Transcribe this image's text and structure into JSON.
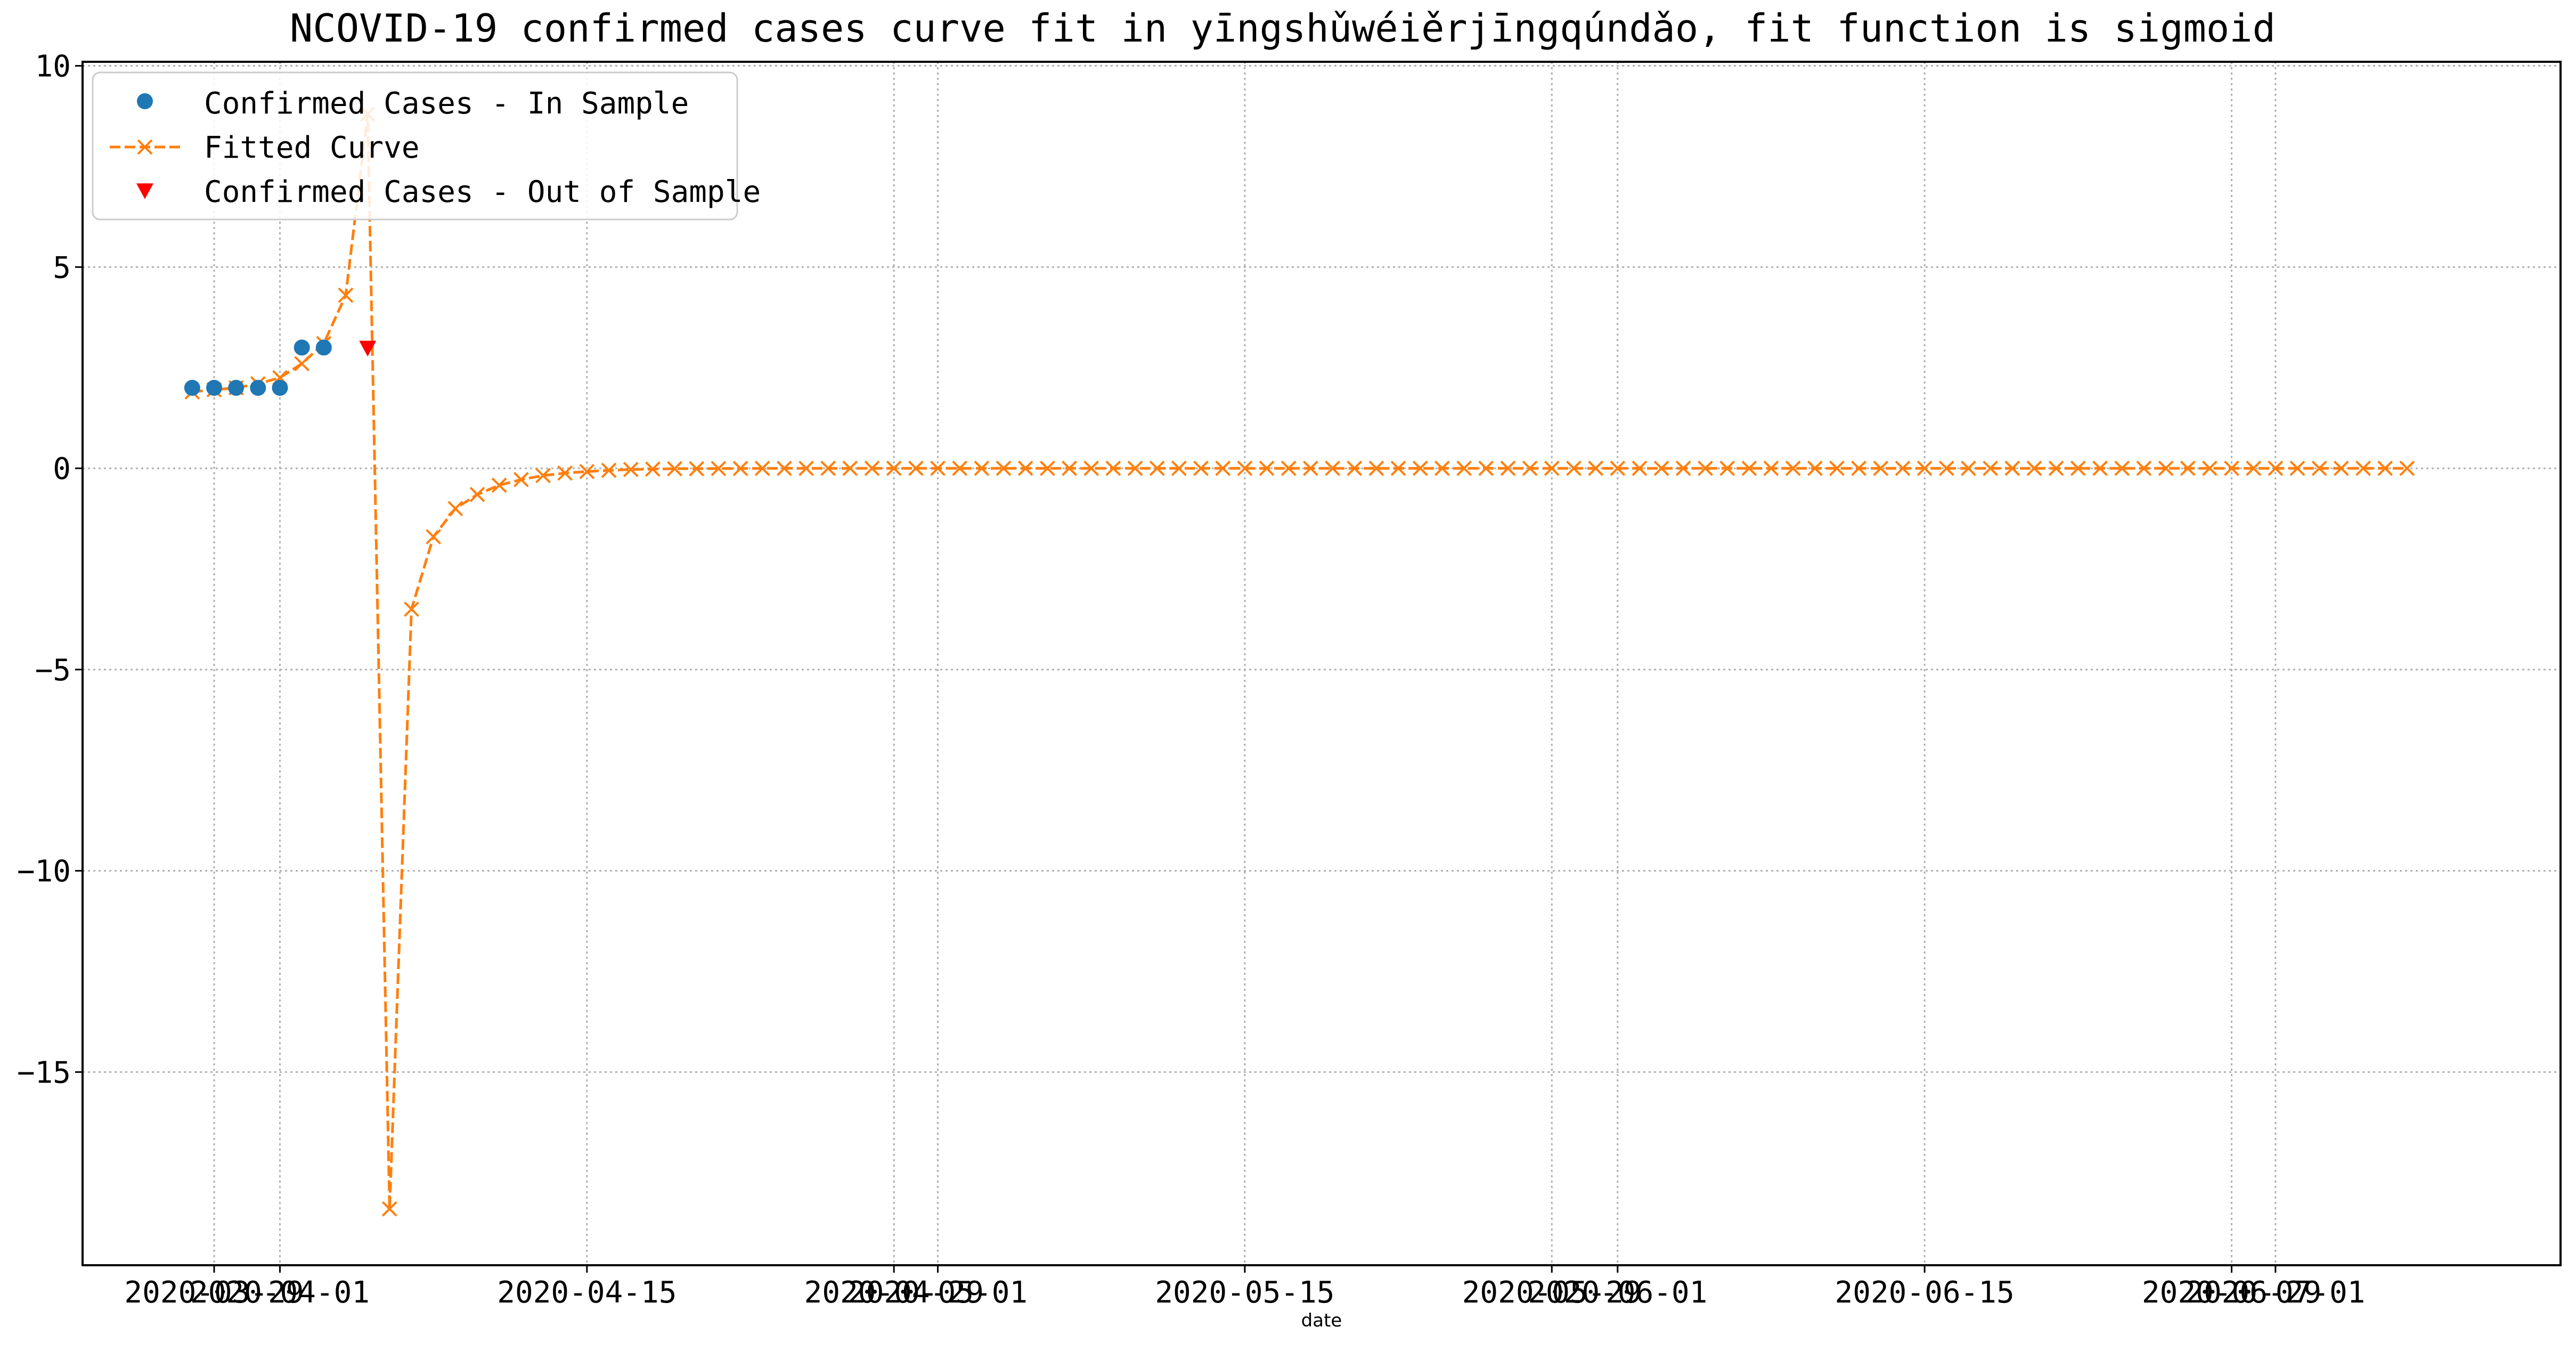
{
  "chart_data": {
    "type": "line",
    "title": "NCOVID-19 confirmed cases curve fit in yīngshǔwéiěrjīngqúndǎo, fit function is sigmoid",
    "xlabel": "date",
    "ylabel": "",
    "grid": true,
    "legend_position": "top-left",
    "x_type": "date",
    "xlim": [
      "2020-03-23",
      "2020-07-14"
    ],
    "ylim": [
      -19.8,
      10.1
    ],
    "x_ticks": [
      "2020-03-29",
      "2020-04-01",
      "2020-04-15",
      "2020-04-29",
      "2020-05-01",
      "2020-05-15",
      "2020-05-29",
      "2020-06-01",
      "2020-06-15",
      "2020-06-29",
      "2020-07-01"
    ],
    "y_ticks": [
      10,
      5,
      0,
      -5,
      -10,
      -15
    ],
    "colors": {
      "in_sample": "#1f77b4",
      "fitted": "#ff7f0e",
      "out_of_sample": "#ff0000",
      "grid": "#b0b0b0"
    },
    "series": [
      {
        "name": "Confirmed Cases - In Sample",
        "marker": "circle",
        "points": [
          {
            "x": "2020-03-28",
            "y": 2
          },
          {
            "x": "2020-03-29",
            "y": 2
          },
          {
            "x": "2020-03-30",
            "y": 2
          },
          {
            "x": "2020-03-31",
            "y": 2
          },
          {
            "x": "2020-04-01",
            "y": 2
          },
          {
            "x": "2020-04-02",
            "y": 3
          },
          {
            "x": "2020-04-03",
            "y": 3
          }
        ]
      },
      {
        "name": "Fitted Curve",
        "marker": "x",
        "style": "dashed",
        "start_date": "2020-03-28",
        "values": [
          1.9,
          1.95,
          2.0,
          2.1,
          2.25,
          2.6,
          3.1,
          4.3,
          8.8,
          -18.4,
          -3.5,
          -1.7,
          -1.0,
          -0.65,
          -0.42,
          -0.28,
          -0.18,
          -0.12,
          -0.08,
          -0.05,
          -0.03,
          -0.02,
          -0.01,
          -0.01,
          -0.005,
          -0.003,
          -0.002,
          -0.001,
          -0.001,
          0,
          0,
          0,
          0,
          0,
          0,
          0,
          0,
          0,
          0,
          0,
          0,
          0,
          0,
          0,
          0,
          0,
          0,
          0,
          0,
          0,
          0,
          0,
          0,
          0,
          0,
          0,
          0,
          0,
          0,
          0,
          0,
          0,
          0,
          0,
          0,
          0,
          0,
          0,
          0,
          0,
          0,
          0,
          0,
          0,
          0,
          0,
          0,
          0,
          0,
          0,
          0,
          0,
          0,
          0,
          0,
          0,
          0,
          0,
          0,
          0,
          0,
          0,
          0,
          0,
          0,
          0,
          0,
          0,
          0,
          0,
          0,
          0
        ]
      },
      {
        "name": "Confirmed Cases - Out of Sample",
        "marker": "triangle-down",
        "points": [
          {
            "x": "2020-04-05",
            "y": 3
          }
        ]
      }
    ]
  }
}
